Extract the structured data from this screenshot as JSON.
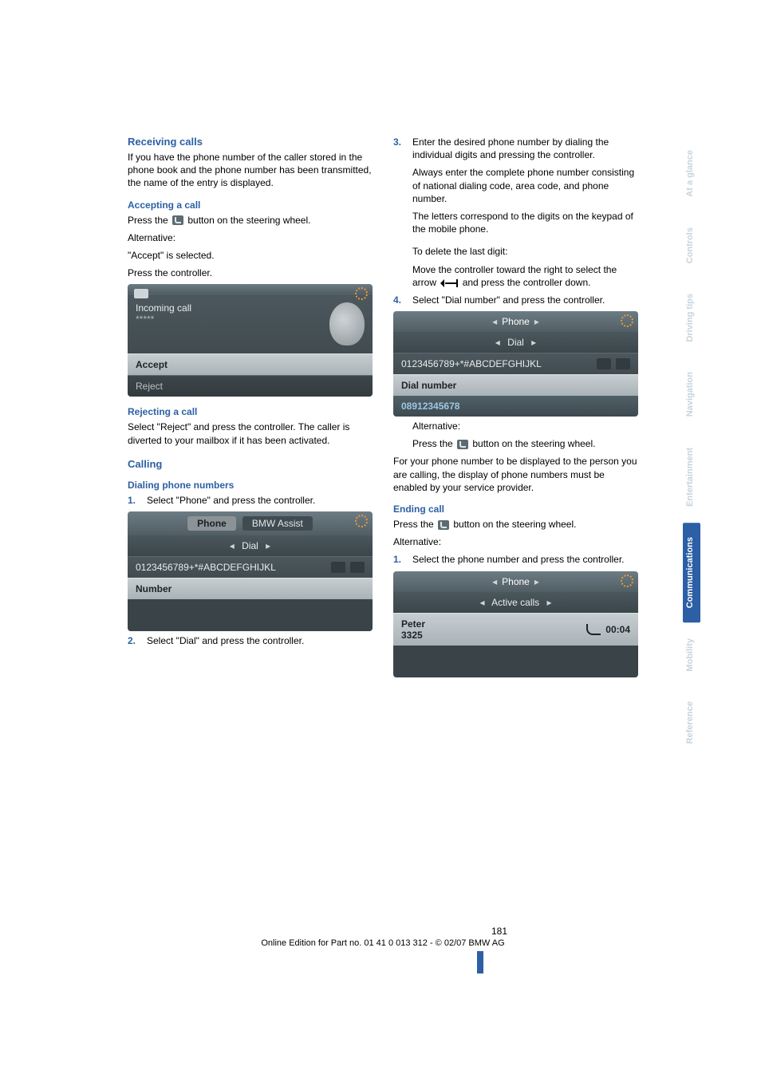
{
  "colors": {
    "heading": "#2c5fa5",
    "list_number": "#2c5fa5",
    "text": "#000000",
    "sidetab_active_bg": "#2c5fa5",
    "sidetab_muted_text": "#c6d4de",
    "shot_text": "#e7edf0",
    "shot_selected_text": "#1d2326"
  },
  "left": {
    "receiving": {
      "heading": "Receiving calls",
      "body": "If you have the phone number of the caller stored in the phone book and the phone number has been transmitted, the name of the entry is displayed."
    },
    "accepting": {
      "heading": "Accepting a call",
      "line1_pre": "Press the ",
      "line1_post": " button on the steering wheel.",
      "alt": "Alternative:",
      "sel_line": "\"Accept\" is selected.",
      "press": "Press the controller."
    },
    "shot1": {
      "incoming": "Incoming call",
      "stars": "*****",
      "accept": "Accept",
      "reject": "Reject"
    },
    "rejecting": {
      "heading": "Rejecting a call",
      "body": "Select \"Reject\" and press the controller. The caller is diverted to your mailbox if it has been activated."
    },
    "calling": {
      "heading": "Calling"
    },
    "dialing": {
      "heading": "Dialing phone numbers",
      "step1": "Select \"Phone\" and press the controller.",
      "step2": "Select \"Dial\" and press the controller."
    },
    "shot2": {
      "tab_phone": "Phone",
      "tab_assist": "BMW Assist",
      "dial": "Dial",
      "keypad": "0123456789+*#ABCDEFGHIJKL",
      "number": "Number"
    }
  },
  "right": {
    "step3": {
      "p1": "Enter the desired phone number by dialing the individual digits and pressing the controller.",
      "p2": "Always enter the complete phone number consisting of national dialing code, area code, and phone number.",
      "p3": "The letters correspond to the digits on the keypad of the mobile phone.",
      "del_label": "To delete the last digit:",
      "del_pre": "Move the controller toward the right to select the arrow ",
      "del_post": " and press the controller down."
    },
    "step4": "Select \"Dial number\" and press the controller.",
    "shot3": {
      "phone": "Phone",
      "dial": "Dial",
      "keypad": "0123456789+*#ABCDEFGHIJKL",
      "dialnum": "Dial number",
      "entered": "08912345678"
    },
    "alt_block": {
      "alt": "Alternative:",
      "press_pre": "Press the ",
      "press_post": " button on the steering wheel.",
      "paragraph": "For your phone number to be displayed to the person you are calling, the display of phone numbers must be enabled by your service provider."
    },
    "ending": {
      "heading": "Ending call",
      "press_pre": "Press the ",
      "press_post": " button on the steering wheel.",
      "alt": "Alternative:",
      "step1": "Select the phone number and press the controller."
    },
    "shot4": {
      "phone": "Phone",
      "active": "Active calls",
      "name": "Peter",
      "num": "3325",
      "duration": "00:04"
    }
  },
  "sidetabs": [
    {
      "label": "At a glance",
      "active": false
    },
    {
      "label": "Controls",
      "active": false
    },
    {
      "label": "Driving tips",
      "active": false
    },
    {
      "label": "Navigation",
      "active": false
    },
    {
      "label": "Entertainment",
      "active": false
    },
    {
      "label": "Communications",
      "active": true
    },
    {
      "label": "Mobility",
      "active": false
    },
    {
      "label": "Reference",
      "active": false
    }
  ],
  "footer": {
    "page": "181",
    "line": "Online Edition for Part no. 01 41 0 013 312 - © 02/07 BMW AG"
  }
}
